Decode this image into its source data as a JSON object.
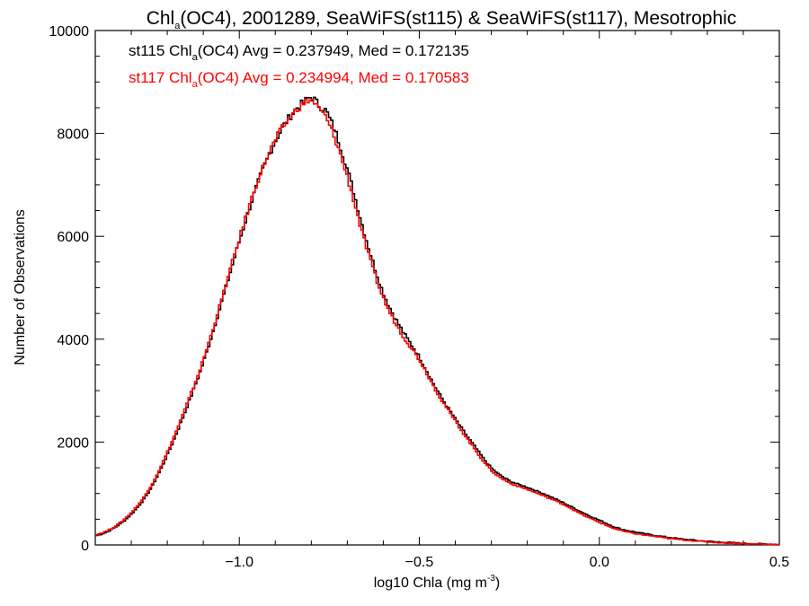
{
  "chart_data": {
    "type": "line",
    "title": {
      "pre": "Chl",
      "sub": "a",
      "post": "(OC4), 2001289, SeaWiFS(st115) & SeaWiFS(st117), Mesotrophic"
    },
    "xlabel": {
      "pre": "log10 Chla (mg m",
      "sup": "-3",
      "post": ")"
    },
    "ylabel": "Number of Observations",
    "xlim": [
      -1.4,
      0.5
    ],
    "ylim": [
      0,
      10000
    ],
    "x_ticks": [
      -1.0,
      -0.5,
      0.0,
      0.5
    ],
    "x_tick_labels": [
      "−1.0",
      "−0.5",
      "0.0",
      "0.5"
    ],
    "y_ticks": [
      0,
      2000,
      4000,
      6000,
      8000,
      10000
    ],
    "y_tick_labels": [
      "0",
      "2000",
      "4000",
      "6000",
      "8000",
      "10000"
    ],
    "grid": false,
    "legend_position": "top-left",
    "x": [
      -1.4,
      -1.35,
      -1.3,
      -1.25,
      -1.2,
      -1.15,
      -1.1,
      -1.05,
      -1.0,
      -0.95,
      -0.9,
      -0.85,
      -0.82,
      -0.8,
      -0.78,
      -0.75,
      -0.7,
      -0.65,
      -0.6,
      -0.55,
      -0.5,
      -0.45,
      -0.4,
      -0.35,
      -0.3,
      -0.25,
      -0.2,
      -0.15,
      -0.1,
      -0.05,
      0.0,
      0.05,
      0.1,
      0.15,
      0.2,
      0.25,
      0.3,
      0.35,
      0.4,
      0.45,
      0.5
    ],
    "series": [
      {
        "name": "st115",
        "color": "#000000",
        "legend_pre": "st115 Chl",
        "legend_sub": "a",
        "legend_post": "(OC4) Avg = 0.237949, Med = 0.172135",
        "values": [
          180,
          320,
          600,
          1050,
          1750,
          2600,
          3550,
          4700,
          5900,
          7000,
          7850,
          8400,
          8600,
          8700,
          8550,
          8300,
          7300,
          6000,
          4900,
          4200,
          3650,
          3000,
          2450,
          1950,
          1500,
          1250,
          1120,
          980,
          820,
          640,
          480,
          330,
          250,
          190,
          140,
          100,
          70,
          50,
          30,
          20,
          10
        ]
      },
      {
        "name": "st117",
        "color": "#ff0000",
        "legend_pre": "st117 Chl",
        "legend_sub": "a",
        "legend_post": "(OC4) Avg = 0.234994, Med = 0.170583",
        "values": [
          200,
          340,
          630,
          1090,
          1800,
          2650,
          3600,
          4750,
          5950,
          7050,
          7870,
          8380,
          8580,
          8650,
          8480,
          8150,
          7150,
          5850,
          4800,
          4120,
          3600,
          2960,
          2410,
          1900,
          1450,
          1210,
          1080,
          940,
          790,
          600,
          440,
          300,
          220,
          170,
          120,
          90,
          60,
          40,
          25,
          15,
          8
        ]
      }
    ]
  }
}
